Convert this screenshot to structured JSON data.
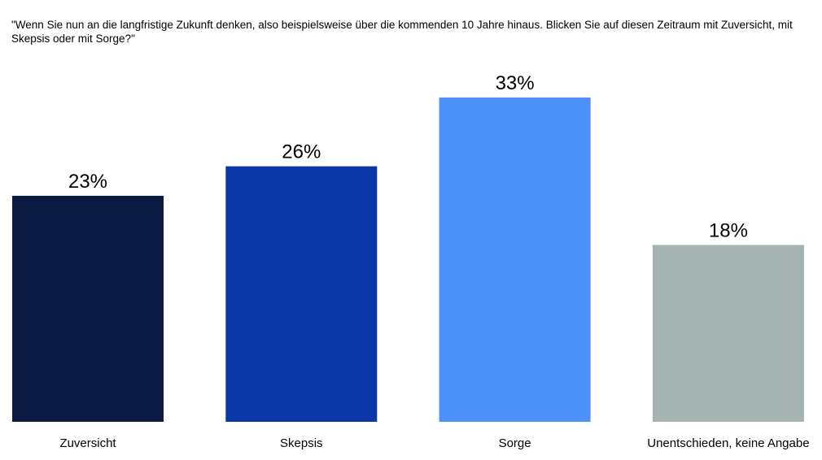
{
  "chart_data": {
    "type": "bar",
    "title": "\"Wenn Sie nun an die langfristige Zukunft denken, also beispielsweise über die kommenden 10 Jahre hinaus. Blicken Sie auf diesen Zeitraum mit Zuversicht, mit Skepsis oder mit Sorge?\"",
    "categories": [
      "Zuversicht",
      "Skepsis",
      "Sorge",
      "Unentschieden, keine Angabe"
    ],
    "values": [
      23,
      26,
      33,
      18
    ],
    "value_labels": [
      "23%",
      "26%",
      "33%",
      "18%"
    ],
    "colors": [
      "#0a1a40",
      "#0a36a8",
      "#4a90f7",
      "#a5b3b2"
    ],
    "xlabel": "",
    "ylabel": "",
    "ylim": [
      0,
      33
    ],
    "grid": false,
    "legend": "none"
  }
}
